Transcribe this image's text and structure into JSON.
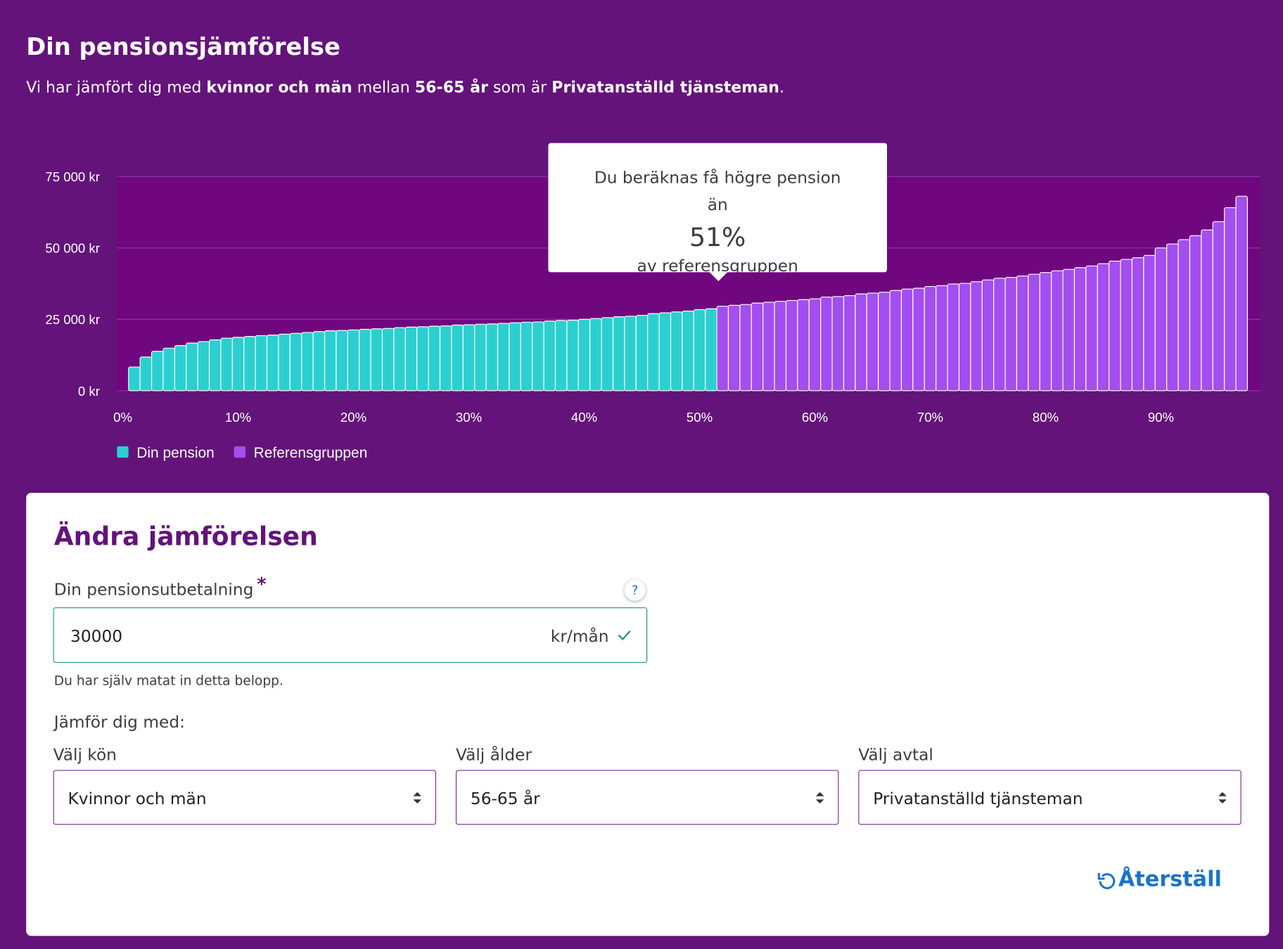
{
  "header": {
    "title": "Din pensionsjämförelse",
    "subtitle": [
      {
        "text": "Vi har jämfört dig med ",
        "bold": false
      },
      {
        "text": "kvinnor och män",
        "bold": true
      },
      {
        "text": " mellan ",
        "bold": false
      },
      {
        "text": "56-65 år",
        "bold": true
      },
      {
        "text": " som är ",
        "bold": false
      },
      {
        "text": "Privatanställd tjänsteman",
        "bold": true
      },
      {
        "text": ".",
        "bold": false
      }
    ]
  },
  "chart_data": {
    "type": "bar",
    "x": [
      1,
      2,
      3,
      4,
      5,
      6,
      7,
      8,
      9,
      10,
      11,
      12,
      13,
      14,
      15,
      16,
      17,
      18,
      19,
      20,
      21,
      22,
      23,
      24,
      25,
      26,
      27,
      28,
      29,
      30,
      31,
      32,
      33,
      34,
      35,
      36,
      37,
      38,
      39,
      40,
      41,
      42,
      43,
      44,
      45,
      46,
      47,
      48,
      49,
      50,
      51,
      52,
      53,
      54,
      55,
      56,
      57,
      58,
      59,
      60,
      61,
      62,
      63,
      64,
      65,
      66,
      67,
      68,
      69,
      70,
      71,
      72,
      73,
      74,
      75,
      76,
      77,
      78,
      79,
      80,
      81,
      82,
      83,
      84,
      85,
      86,
      87,
      88,
      89,
      90,
      91,
      92,
      93,
      94,
      95,
      96,
      97
    ],
    "series": [
      {
        "name": "Din pension",
        "color": "#2ccfcf",
        "values": [
          8300,
          11800,
          13800,
          14900,
          15800,
          16700,
          17200,
          17800,
          18400,
          18700,
          19000,
          19300,
          19500,
          19800,
          20100,
          20400,
          20700,
          21000,
          21100,
          21300,
          21500,
          21700,
          21800,
          22100,
          22300,
          22400,
          22600,
          22700,
          23000,
          23100,
          23300,
          23400,
          23600,
          23800,
          24000,
          24100,
          24400,
          24600,
          24700,
          25000,
          25300,
          25600,
          25900,
          26100,
          26400,
          27000,
          27300,
          27600,
          27900,
          28400,
          28700,
          null,
          null,
          null,
          null,
          null,
          null,
          null,
          null,
          null,
          null,
          null,
          null,
          null,
          null,
          null,
          null,
          null,
          null,
          null,
          null,
          null,
          null,
          null,
          null,
          null,
          null,
          null,
          null,
          null,
          null,
          null,
          null,
          null,
          null,
          null,
          null,
          null,
          null,
          null,
          null,
          null,
          null,
          null,
          null,
          null,
          null
        ]
      },
      {
        "name": "Referensgruppen",
        "color": "#a34ef0",
        "values": [
          null,
          null,
          null,
          null,
          null,
          null,
          null,
          null,
          null,
          null,
          null,
          null,
          null,
          null,
          null,
          null,
          null,
          null,
          null,
          null,
          null,
          null,
          null,
          null,
          null,
          null,
          null,
          null,
          null,
          null,
          null,
          null,
          null,
          null,
          null,
          null,
          null,
          null,
          null,
          null,
          null,
          null,
          null,
          null,
          null,
          null,
          null,
          null,
          null,
          null,
          null,
          29600,
          29900,
          30200,
          30700,
          31000,
          31300,
          31600,
          31900,
          32200,
          32800,
          33000,
          33300,
          33900,
          34200,
          34500,
          35100,
          35600,
          35900,
          36500,
          36800,
          37400,
          37600,
          38200,
          38800,
          39400,
          39700,
          40200,
          40800,
          41400,
          42000,
          42500,
          43100,
          43700,
          44500,
          45400,
          46000,
          46600,
          47400,
          50000,
          51400,
          52900,
          54300,
          56300,
          59200,
          64100,
          68100
        ]
      }
    ],
    "xlim": [
      -0.5,
      98.6
    ],
    "ylim": [
      0,
      75000
    ],
    "xticks": [
      {
        "value": 0,
        "label": "0%"
      },
      {
        "value": 10,
        "label": "10%"
      },
      {
        "value": 20,
        "label": "20%"
      },
      {
        "value": 30,
        "label": "30%"
      },
      {
        "value": 40,
        "label": "40%"
      },
      {
        "value": 50,
        "label": "50%"
      },
      {
        "value": 60,
        "label": "60%"
      },
      {
        "value": 70,
        "label": "70%"
      },
      {
        "value": 80,
        "label": "80%"
      },
      {
        "value": 90,
        "label": "90%"
      }
    ],
    "yticks": [
      {
        "value": 0,
        "label": "0 kr"
      },
      {
        "value": 25000,
        "label": "25 000 kr"
      },
      {
        "value": 50000,
        "label": "50 000 kr"
      },
      {
        "value": 75000,
        "label": "75 000 kr"
      }
    ],
    "grid": true,
    "legend": "bottom-left"
  },
  "tooltip": {
    "lead": "Du beräknas få högre pension än",
    "value": "51%",
    "tail": "av referensgruppen"
  },
  "form": {
    "title": "Ändra jämförelsen",
    "field_label": "Din pensionsutbetalning",
    "required_mark": "*",
    "help": "?",
    "input_value": "30000",
    "input_unit": "kr/mån",
    "hint": "Du har själv matat in detta belopp.",
    "compare_label": "Jämför dig med:",
    "selects": [
      {
        "label": "Välj kön",
        "value": "Kvinnor och män"
      },
      {
        "label": "Välj ålder",
        "value": "56-65 år"
      },
      {
        "label": "Välj avtal",
        "value": "Privatanställd tjänsteman"
      }
    ],
    "reset": "Återställ"
  }
}
